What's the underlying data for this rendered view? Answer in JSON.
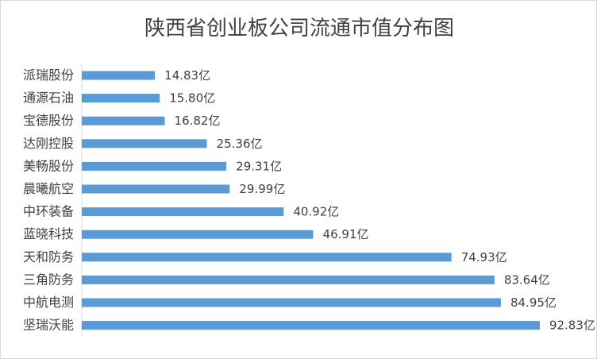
{
  "chart_data": {
    "type": "bar",
    "orientation": "horizontal",
    "title": "陕西省创业板公司流通市值分布图",
    "xlabel": "",
    "ylabel": "",
    "unit": "亿",
    "categories": [
      "派瑞股份",
      "通源石油",
      "宝德股份",
      "达刚控股",
      "美畅股份",
      "晨曦航空",
      "中环装备",
      "蓝晓科技",
      "天和防务",
      "三角防务",
      "中航电测",
      "坚瑞沃能"
    ],
    "values": [
      14.83,
      15.8,
      16.82,
      25.36,
      29.31,
      29.99,
      40.92,
      46.91,
      74.93,
      83.64,
      84.95,
      92.83
    ],
    "value_labels": [
      "14.83亿",
      "15.80亿",
      "16.82亿",
      "25.36亿",
      "29.31亿",
      "29.99亿",
      "40.92亿",
      "46.91亿",
      "74.93亿",
      "83.64亿",
      "84.95亿",
      "92.83亿"
    ],
    "xlim": [
      0,
      93
    ],
    "grid": false,
    "legend": "none",
    "bar_color": "#5b9bd5"
  }
}
